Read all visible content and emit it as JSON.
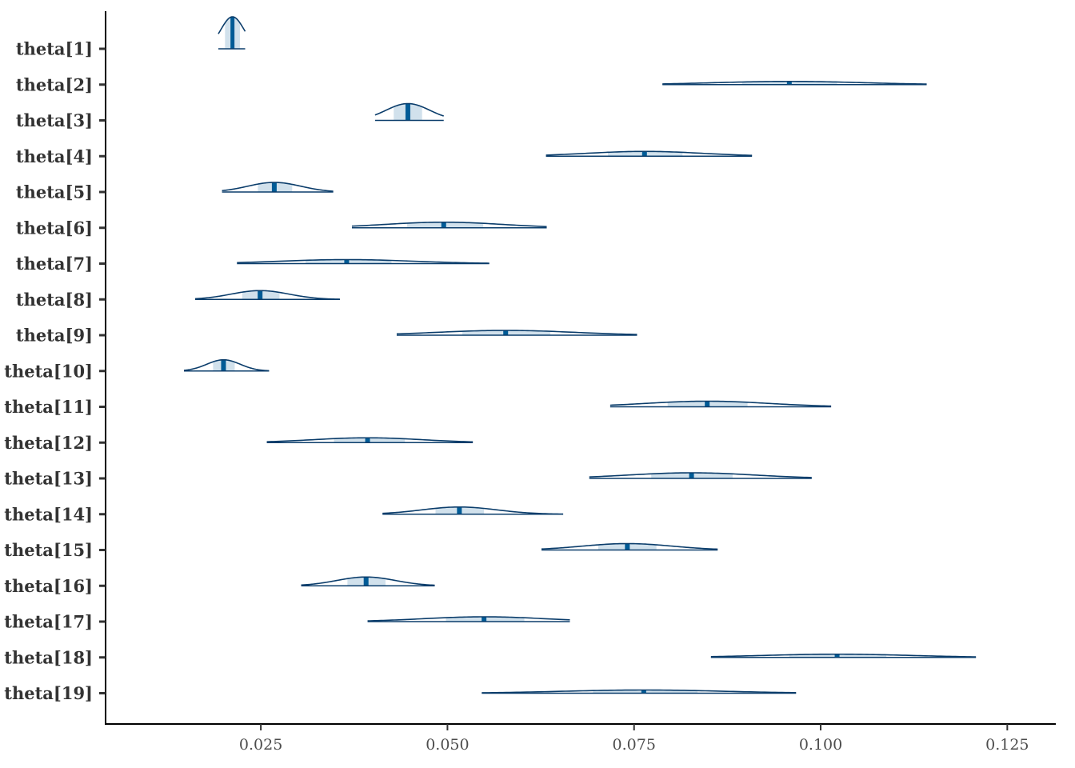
{
  "chart_data": {
    "type": "area",
    "title": "",
    "xlabel": "",
    "ylabel": "",
    "grid": false,
    "legend": "none",
    "xlim": [
      0.0042,
      0.1315
    ],
    "xticks": [
      {
        "value": 0.025,
        "label": "0.025"
      },
      {
        "value": 0.05,
        "label": "0.050"
      },
      {
        "value": 0.075,
        "label": "0.075"
      },
      {
        "value": 0.1,
        "label": "0.100"
      },
      {
        "value": 0.125,
        "label": "0.125"
      }
    ],
    "colors": {
      "line": "#0b3d6b",
      "fill": "#d1e1ec",
      "point": "#005b96",
      "axis": "#000000"
    },
    "series": [
      {
        "label": "theta[1]",
        "median": 0.0212,
        "inner": [
          0.0202,
          0.0222
        ],
        "outer": [
          0.0193,
          0.0229
        ],
        "peak": 40
      },
      {
        "label": "theta[2]",
        "median": 0.0958,
        "inner": [
          0.0895,
          0.1022
        ],
        "outer": [
          0.0788,
          0.1142
        ],
        "peak": 4
      },
      {
        "label": "theta[3]",
        "median": 0.0447,
        "inner": [
          0.0428,
          0.0466
        ],
        "outer": [
          0.0403,
          0.0495
        ],
        "peak": 21
      },
      {
        "label": "theta[4]",
        "median": 0.0764,
        "inner": [
          0.0715,
          0.0815
        ],
        "outer": [
          0.0632,
          0.0908
        ],
        "peak": 6
      },
      {
        "label": "theta[5]",
        "median": 0.0268,
        "inner": [
          0.0246,
          0.0292
        ],
        "outer": [
          0.0198,
          0.0347
        ],
        "peak": 12
      },
      {
        "label": "theta[6]",
        "median": 0.0495,
        "inner": [
          0.0446,
          0.0548
        ],
        "outer": [
          0.0372,
          0.0633
        ],
        "peak": 7
      },
      {
        "label": "theta[7]",
        "median": 0.0365,
        "inner": [
          0.031,
          0.0425
        ],
        "outer": [
          0.0218,
          0.0556
        ],
        "peak": 5
      },
      {
        "label": "theta[8]",
        "median": 0.0249,
        "inner": [
          0.0225,
          0.0275
        ],
        "outer": [
          0.0162,
          0.0356
        ],
        "peak": 11
      },
      {
        "label": "theta[9]",
        "median": 0.0578,
        "inner": [
          0.052,
          0.0638
        ],
        "outer": [
          0.0432,
          0.0754
        ],
        "peak": 6
      },
      {
        "label": "theta[10]",
        "median": 0.02,
        "inner": [
          0.0186,
          0.0215
        ],
        "outer": [
          0.0147,
          0.0261
        ],
        "peak": 14
      },
      {
        "label": "theta[11]",
        "median": 0.0848,
        "inner": [
          0.0795,
          0.0902
        ],
        "outer": [
          0.0718,
          0.1014
        ],
        "peak": 7
      },
      {
        "label": "theta[12]",
        "median": 0.0393,
        "inner": [
          0.0348,
          0.0443
        ],
        "outer": [
          0.0258,
          0.0534
        ],
        "peak": 6
      },
      {
        "label": "theta[13]",
        "median": 0.0827,
        "inner": [
          0.0773,
          0.0882
        ],
        "outer": [
          0.069,
          0.0988
        ],
        "peak": 7
      },
      {
        "label": "theta[14]",
        "median": 0.0516,
        "inner": [
          0.0484,
          0.0549
        ],
        "outer": [
          0.0413,
          0.0655
        ],
        "peak": 9
      },
      {
        "label": "theta[15]",
        "median": 0.0741,
        "inner": [
          0.0702,
          0.078
        ],
        "outer": [
          0.0626,
          0.0862
        ],
        "peak": 8
      },
      {
        "label": "theta[16]",
        "median": 0.0391,
        "inner": [
          0.0366,
          0.0417
        ],
        "outer": [
          0.0304,
          0.0483
        ],
        "peak": 11
      },
      {
        "label": "theta[17]",
        "median": 0.0549,
        "inner": [
          0.0498,
          0.0603
        ],
        "outer": [
          0.0393,
          0.0664
        ],
        "peak": 6
      },
      {
        "label": "theta[18]",
        "median": 0.1022,
        "inner": [
          0.0958,
          0.1088
        ],
        "outer": [
          0.0853,
          0.1208
        ],
        "peak": 4
      },
      {
        "label": "theta[19]",
        "median": 0.0763,
        "inner": [
          0.0695,
          0.0835
        ],
        "outer": [
          0.0546,
          0.0967
        ],
        "peak": 4
      }
    ]
  }
}
